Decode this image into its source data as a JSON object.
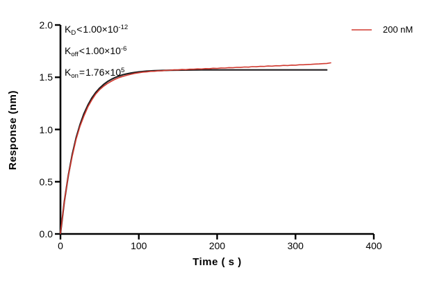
{
  "figure": {
    "x_axis": {
      "title": "Time ( s )"
    },
    "y_axis": {
      "title": "Response (nm)"
    }
  },
  "annotations": [
    {
      "base": "K",
      "sub": "D",
      "op": "<",
      "mantissa": "1.00×10",
      "exp": "-12"
    },
    {
      "base": "K",
      "sub": "off",
      "op": "<",
      "mantissa": "1.00×10",
      "exp": "-6"
    },
    {
      "base": "K",
      "sub": "on",
      "op": "=",
      "mantissa": "1.76×10",
      "exp": "5"
    }
  ],
  "legend": {
    "label": "200 nM",
    "color": "#d0392f"
  },
  "chart_data": {
    "type": "line",
    "title": "",
    "xlabel": "Time ( s )",
    "ylabel": "Response (nm)",
    "xlim": [
      0,
      400
    ],
    "ylim": [
      0,
      2
    ],
    "xticks": [
      0,
      100,
      200,
      300,
      400
    ],
    "yticks": [
      0,
      0.5,
      1.0,
      1.5,
      2.0
    ],
    "xtick_labels": [
      "0",
      "100",
      "200",
      "300",
      "400"
    ],
    "ytick_labels": [
      "0.0",
      "0.5",
      "1.0",
      "1.5",
      "2.0"
    ],
    "grid": false,
    "legend_position": "outside-top-right",
    "axis_color": "#000000",
    "series": [
      {
        "name": "200 nM",
        "role": "measured-data",
        "color": "#d0392f",
        "stroke_width": 1.6,
        "points": [
          [
            0,
            0.005
          ],
          [
            5,
            0.31
          ],
          [
            10,
            0.557
          ],
          [
            15,
            0.742
          ],
          [
            20,
            0.905
          ],
          [
            25,
            1.031
          ],
          [
            30,
            1.128
          ],
          [
            35,
            1.216
          ],
          [
            40,
            1.282
          ],
          [
            45,
            1.338
          ],
          [
            50,
            1.381
          ],
          [
            55,
            1.413
          ],
          [
            60,
            1.44
          ],
          [
            65,
            1.462
          ],
          [
            70,
            1.481
          ],
          [
            75,
            1.497
          ],
          [
            80,
            1.508
          ],
          [
            85,
            1.519
          ],
          [
            90,
            1.528
          ],
          [
            95,
            1.537
          ],
          [
            100,
            1.543
          ],
          [
            105,
            1.549
          ],
          [
            110,
            1.551
          ],
          [
            115,
            1.556
          ],
          [
            120,
            1.557
          ],
          [
            125,
            1.561
          ],
          [
            130,
            1.562
          ],
          [
            135,
            1.566
          ],
          [
            140,
            1.567
          ],
          [
            145,
            1.571
          ],
          [
            150,
            1.57
          ],
          [
            155,
            1.574
          ],
          [
            160,
            1.573
          ],
          [
            165,
            1.577
          ],
          [
            170,
            1.577
          ],
          [
            175,
            1.58
          ],
          [
            180,
            1.579
          ],
          [
            185,
            1.583
          ],
          [
            190,
            1.582
          ],
          [
            195,
            1.586
          ],
          [
            200,
            1.585
          ],
          [
            205,
            1.589
          ],
          [
            210,
            1.588
          ],
          [
            215,
            1.592
          ],
          [
            220,
            1.591
          ],
          [
            225,
            1.595
          ],
          [
            230,
            1.594
          ],
          [
            235,
            1.598
          ],
          [
            240,
            1.597
          ],
          [
            245,
            1.601
          ],
          [
            250,
            1.6
          ],
          [
            255,
            1.604
          ],
          [
            260,
            1.603
          ],
          [
            265,
            1.607
          ],
          [
            270,
            1.606
          ],
          [
            275,
            1.61
          ],
          [
            280,
            1.609
          ],
          [
            285,
            1.613
          ],
          [
            290,
            1.612
          ],
          [
            295,
            1.616
          ],
          [
            300,
            1.615
          ],
          [
            305,
            1.619
          ],
          [
            310,
            1.619
          ],
          [
            315,
            1.622
          ],
          [
            320,
            1.623
          ],
          [
            325,
            1.626
          ],
          [
            330,
            1.627
          ],
          [
            335,
            1.63
          ],
          [
            340,
            1.632
          ],
          [
            345,
            1.638
          ]
        ]
      },
      {
        "name": "fit",
        "role": "fitted-curve",
        "color": "#231f20",
        "stroke_width": 2.2,
        "points": [
          [
            0,
            0
          ],
          [
            5,
            0.31
          ],
          [
            10,
            0.559
          ],
          [
            15,
            0.758
          ],
          [
            20,
            0.919
          ],
          [
            25,
            1.047
          ],
          [
            30,
            1.151
          ],
          [
            35,
            1.233
          ],
          [
            40,
            1.3
          ],
          [
            45,
            1.353
          ],
          [
            50,
            1.396
          ],
          [
            55,
            1.43
          ],
          [
            60,
            1.458
          ],
          [
            65,
            1.48
          ],
          [
            70,
            1.498
          ],
          [
            75,
            1.512
          ],
          [
            80,
            1.524
          ],
          [
            85,
            1.533
          ],
          [
            90,
            1.54
          ],
          [
            95,
            1.546
          ],
          [
            100,
            1.551
          ],
          [
            110,
            1.558
          ],
          [
            120,
            1.562
          ],
          [
            130,
            1.565
          ],
          [
            140,
            1.567
          ],
          [
            150,
            1.568
          ],
          [
            160,
            1.569
          ],
          [
            180,
            1.57
          ],
          [
            200,
            1.57
          ],
          [
            240,
            1.57
          ],
          [
            280,
            1.57
          ],
          [
            310,
            1.57
          ],
          [
            340,
            1.57
          ]
        ]
      }
    ],
    "kinetic_constants": {
      "KD": "<1.00e-12",
      "Koff": "<1.00e-6",
      "Kon": "1.76e5"
    }
  }
}
